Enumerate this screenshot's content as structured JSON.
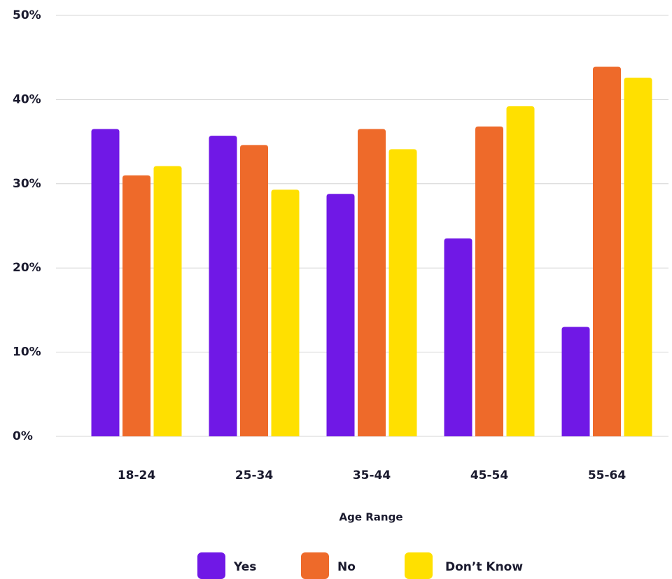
{
  "chart_data": {
    "type": "bar",
    "x_label": "Age Range",
    "categories": [
      "18-24",
      "25-34",
      "35-44",
      "45-54",
      "55-64"
    ],
    "series": [
      {
        "name": "Yes",
        "color": "#7018e6",
        "values": [
          36.5,
          35.7,
          28.8,
          23.5,
          13.0
        ]
      },
      {
        "name": "No",
        "color": "#ee6a2a",
        "values": [
          31.0,
          34.6,
          36.5,
          36.8,
          43.9
        ]
      },
      {
        "name": "Don’t Know",
        "color": "#ffe000",
        "values": [
          32.1,
          29.3,
          34.1,
          39.2,
          42.6
        ]
      }
    ],
    "ylim": [
      0,
      50
    ],
    "yticks": [
      {
        "value": 0,
        "label": "0%"
      },
      {
        "value": 10,
        "label": "10%"
      },
      {
        "value": 20,
        "label": "20%"
      },
      {
        "value": 30,
        "label": "30%"
      },
      {
        "value": 40,
        "label": "40%"
      },
      {
        "value": 50,
        "label": "50%"
      }
    ],
    "grid": true,
    "legend": "bottom"
  }
}
